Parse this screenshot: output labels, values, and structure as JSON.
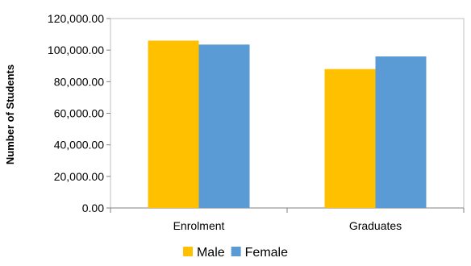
{
  "chart_data": {
    "type": "bar",
    "title": "",
    "xlabel": "",
    "ylabel": "Number of Students",
    "categories": [
      "Enrolment",
      "Graduates"
    ],
    "series": [
      {
        "name": "Male",
        "values": [
          106000,
          88000
        ],
        "color": "#FFC000"
      },
      {
        "name": "Female",
        "values": [
          103500,
          96000
        ],
        "color": "#5B9BD5"
      }
    ],
    "ylim": [
      0,
      120000
    ],
    "yticks": [
      0,
      20000,
      40000,
      60000,
      80000,
      100000,
      120000
    ],
    "ytick_labels": [
      "0.00",
      "20,000.00",
      "40,000.00",
      "60,000.00",
      "80,000.00",
      "100,000.00",
      "120,000.00"
    ],
    "grid": false,
    "legend_position": "bottom"
  }
}
